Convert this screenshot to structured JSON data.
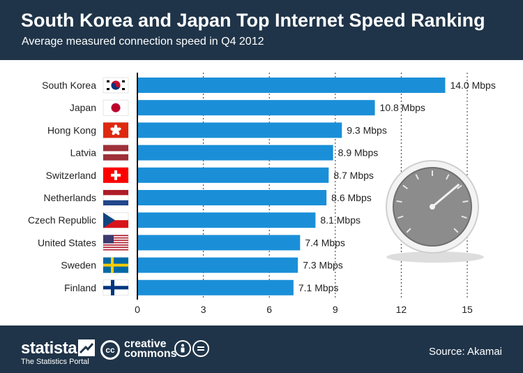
{
  "header": {
    "title": "South Korea and Japan Top Internet Speed Ranking",
    "subtitle": "Average measured connection speed in Q4 2012"
  },
  "chart_data": {
    "type": "bar",
    "orientation": "horizontal",
    "title": "South Korea and Japan Top Internet Speed Ranking",
    "subtitle": "Average measured connection speed in Q4 2012",
    "xlabel": "",
    "ylabel": "",
    "xlim": [
      0,
      15
    ],
    "x_ticks": [
      0,
      3,
      6,
      9,
      12,
      15
    ],
    "grid": "dotted-vertical",
    "bar_color": "#1a8fd8",
    "value_suffix": " Mbps",
    "categories": [
      "South Korea",
      "Japan",
      "Hong Kong",
      "Latvia",
      "Switzerland",
      "Netherlands",
      "Czech Republic",
      "United States",
      "Sweden",
      "Finland"
    ],
    "values": [
      14.0,
      10.8,
      9.3,
      8.9,
      8.7,
      8.6,
      8.1,
      7.4,
      7.3,
      7.1
    ],
    "value_labels": [
      "14.0 Mbps",
      "10.8 Mbps",
      "9.3 Mbps",
      "8.9 Mbps",
      "8.7 Mbps",
      "8.6 Mbps",
      "8.1 Mbps",
      "7.4 Mbps",
      "7.3 Mbps",
      "7.1 Mbps"
    ],
    "flags": [
      "south-korea-flag-icon",
      "japan-flag-icon",
      "hong-kong-flag-icon",
      "latvia-flag-icon",
      "switzerland-flag-icon",
      "netherlands-flag-icon",
      "czech-republic-flag-icon",
      "united-states-flag-icon",
      "sweden-flag-icon",
      "finland-flag-icon"
    ],
    "decoration": "speedometer-icon"
  },
  "footer": {
    "brand": "statista",
    "brand_sub": "The Statistics Portal",
    "cc_line1": "creative",
    "cc_line2": "commons",
    "cc_symbol": "cc",
    "source": "Source: Akamai"
  },
  "colors": {
    "header_bg": "#1f3449",
    "bar": "#1a8fd8",
    "gauge_face": "#8a8a8a"
  }
}
